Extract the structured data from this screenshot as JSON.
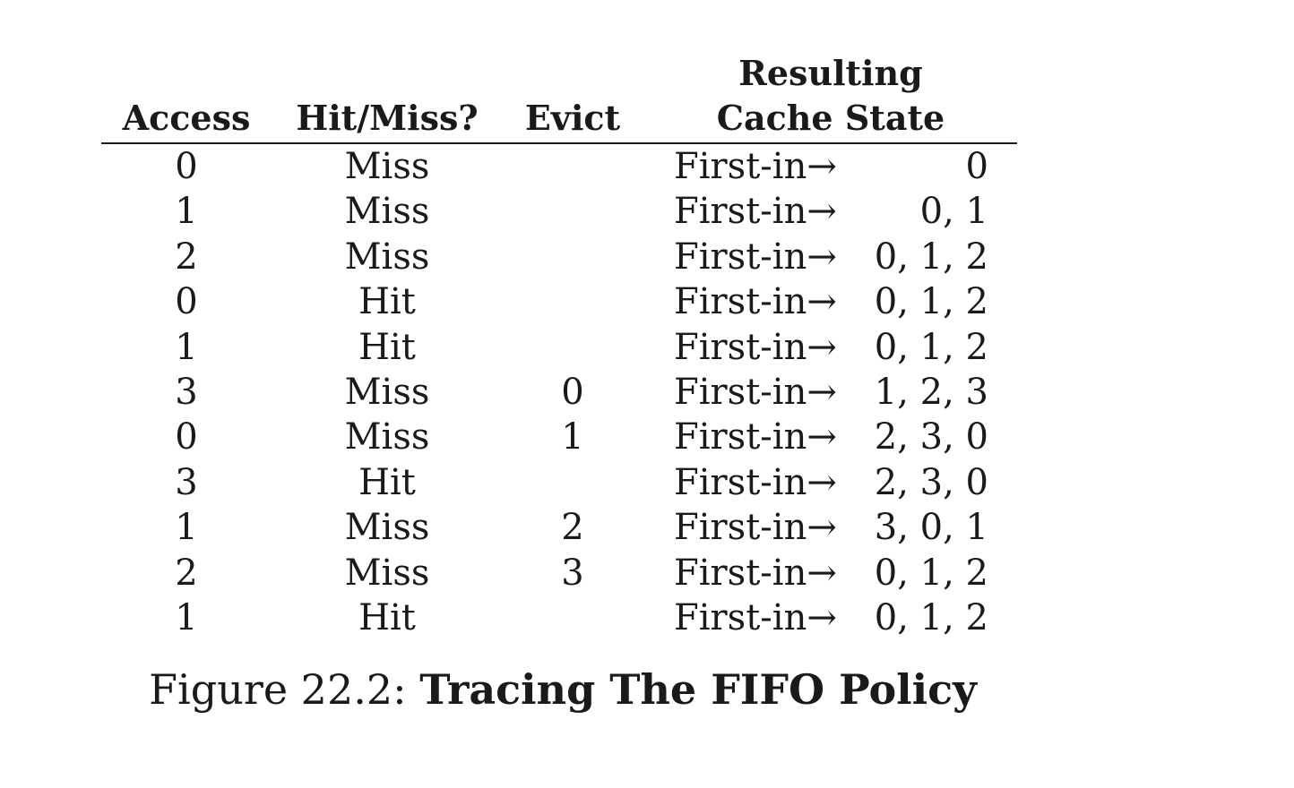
{
  "table": {
    "headers": {
      "access": "Access",
      "hit_miss": "Hit/Miss?",
      "evict": "Evict",
      "state_line1": "Resulting",
      "state_line2": "Cache State"
    },
    "rows": [
      {
        "access": "0",
        "hit_miss": "Miss",
        "evict": "",
        "marker": "First-in→",
        "state": "0"
      },
      {
        "access": "1",
        "hit_miss": "Miss",
        "evict": "",
        "marker": "First-in→",
        "state": "0, 1"
      },
      {
        "access": "2",
        "hit_miss": "Miss",
        "evict": "",
        "marker": "First-in→",
        "state": "0, 1, 2"
      },
      {
        "access": "0",
        "hit_miss": "Hit",
        "evict": "",
        "marker": "First-in→",
        "state": "0, 1, 2"
      },
      {
        "access": "1",
        "hit_miss": "Hit",
        "evict": "",
        "marker": "First-in→",
        "state": "0, 1, 2"
      },
      {
        "access": "3",
        "hit_miss": "Miss",
        "evict": "0",
        "marker": "First-in→",
        "state": "1, 2, 3"
      },
      {
        "access": "0",
        "hit_miss": "Miss",
        "evict": "1",
        "marker": "First-in→",
        "state": "2, 3, 0"
      },
      {
        "access": "3",
        "hit_miss": "Hit",
        "evict": "",
        "marker": "First-in→",
        "state": "2, 3, 0"
      },
      {
        "access": "1",
        "hit_miss": "Miss",
        "evict": "2",
        "marker": "First-in→",
        "state": "3, 0, 1"
      },
      {
        "access": "2",
        "hit_miss": "Miss",
        "evict": "3",
        "marker": "First-in→",
        "state": "0, 1, 2"
      },
      {
        "access": "1",
        "hit_miss": "Hit",
        "evict": "",
        "marker": "First-in→",
        "state": "0, 1, 2"
      }
    ]
  },
  "caption": {
    "prefix": "Figure 22.2: ",
    "title": "Tracing The FIFO Policy"
  }
}
